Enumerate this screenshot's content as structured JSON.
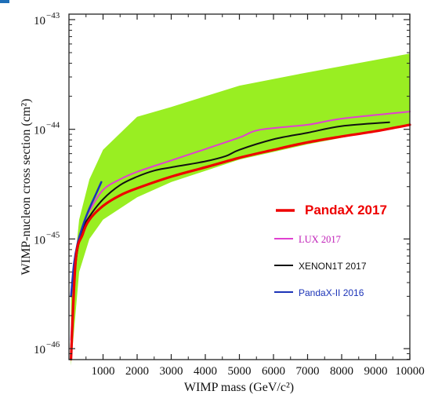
{
  "chart_data": {
    "type": "line",
    "title": "",
    "xlabel": "WIMP mass (GeV/c²)",
    "ylabel": "WIMP-nucleon cross section (cm²)",
    "xlim": [
      0,
      10000
    ],
    "ylim_exponents": [
      -46.1,
      -42.95
    ],
    "y_scale": "log",
    "grid": false,
    "legend_placement": "center-right",
    "x_ticks": [
      {
        "value": 1000,
        "label": "1000"
      },
      {
        "value": 2000,
        "label": "2000"
      },
      {
        "value": 3000,
        "label": "3000"
      },
      {
        "value": 4000,
        "label": "4000"
      },
      {
        "value": 5000,
        "label": "5000"
      },
      {
        "value": 6000,
        "label": "6000"
      },
      {
        "value": 7000,
        "label": "7000"
      },
      {
        "value": 8000,
        "label": "8000"
      },
      {
        "value": 9000,
        "label": "9000"
      },
      {
        "value": 10000,
        "label": "10000"
      }
    ],
    "y_ticks": [
      {
        "exp": -43,
        "base": "10",
        "sup": "−43"
      },
      {
        "exp": -44,
        "base": "10",
        "sup": "−44"
      },
      {
        "exp": -45,
        "base": "10",
        "sup": "−45"
      },
      {
        "exp": -46,
        "base": "10",
        "sup": "−46"
      }
    ],
    "band": {
      "color": "#99ee22",
      "upper": [
        [
          60,
          2.8e-46
        ],
        [
          300,
          1.5e-45
        ],
        [
          600,
          3.5e-45
        ],
        [
          1000,
          6.5e-45
        ],
        [
          2000,
          1.3e-44
        ],
        [
          3000,
          1.6e-44
        ],
        [
          5000,
          2.5e-44
        ],
        [
          7000,
          3.3e-44
        ],
        [
          10000,
          4.9e-44
        ]
      ],
      "lower": [
        [
          60,
          7e-47
        ],
        [
          300,
          5e-46
        ],
        [
          600,
          1e-45
        ],
        [
          1000,
          1.5e-45
        ],
        [
          2000,
          2.4e-45
        ],
        [
          3000,
          3.3e-45
        ],
        [
          5000,
          5.3e-45
        ],
        [
          7000,
          7.3e-45
        ],
        [
          10000,
          1.1e-44
        ]
      ]
    },
    "series": [
      {
        "name": "PandaX 2017",
        "color": "#ee0000",
        "width": 3.2,
        "x": [
          60,
          200,
          400,
          600,
          1000,
          1500,
          2000,
          3000,
          4000,
          5000,
          6000,
          7000,
          8000,
          9000,
          10000
        ],
        "y": [
          8e-47,
          6.5e-46,
          1.1e-45,
          1.5e-45,
          2e-45,
          2.5e-45,
          2.9e-45,
          3.7e-45,
          4.5e-45,
          5.5e-45,
          6.5e-45,
          7.6e-45,
          8.6e-45,
          9.6e-45,
          1.1e-44
        ]
      },
      {
        "name": "LUX 2017",
        "color": "#e040d0",
        "width": 2,
        "x": [
          60,
          200,
          400,
          600,
          1000,
          1500,
          2000,
          3000,
          4000,
          5000,
          5600,
          7000,
          8000,
          10000
        ],
        "y": [
          1.2e-46,
          7e-46,
          1.3e-45,
          1.8e-45,
          2.8e-45,
          3.5e-45,
          4.1e-45,
          5.2e-45,
          6.6e-45,
          8.4e-45,
          9.9e-45,
          1.1e-44,
          1.25e-44,
          1.45e-44
        ]
      },
      {
        "name": "XENON1T 2017",
        "color": "#111111",
        "width": 2,
        "x": [
          60,
          200,
          400,
          600,
          1000,
          1500,
          2000,
          2500,
          3000,
          4000,
          4600,
          5000,
          6000,
          7000,
          8000,
          9400
        ],
        "y": [
          1e-46,
          6e-46,
          1.2e-45,
          1.6e-45,
          2.3e-45,
          3.1e-45,
          3.7e-45,
          4.2e-45,
          4.5e-45,
          5.1e-45,
          5.7e-45,
          6.5e-45,
          8.1e-45,
          9.3e-45,
          1.07e-44,
          1.16e-44
        ]
      },
      {
        "name": "PandaX-II 2016",
        "color": "#1c34b8",
        "width": 2.5,
        "x": [
          60,
          150,
          250,
          400,
          600,
          800,
          950
        ],
        "y": [
          3e-46,
          6e-46,
          9e-46,
          1.3e-45,
          1.9e-45,
          2.6e-45,
          3.3e-45
        ]
      }
    ],
    "legend": [
      {
        "label": "PandaX 2017",
        "color": "#ee0000",
        "style": "big"
      },
      {
        "label": "LUX 2017",
        "color": "#c020b8",
        "style": "serif"
      },
      {
        "label": "XENON1T 2017",
        "color": "#111111",
        "style": "sans"
      },
      {
        "label": "PandaX-II 2016",
        "color": "#1c34b8",
        "style": "sans"
      }
    ]
  }
}
